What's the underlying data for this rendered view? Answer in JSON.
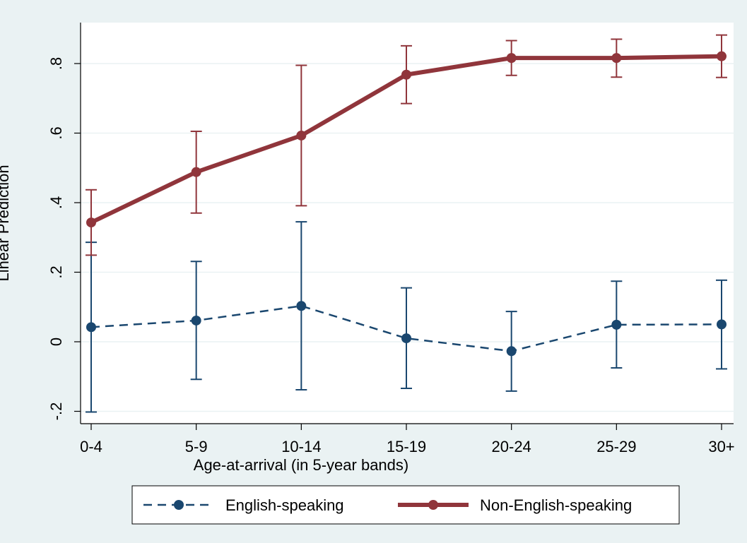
{
  "chart_data": {
    "type": "line",
    "title": "",
    "xlabel": "Age-at-arrival (in 5-year bands)",
    "ylabel": "Linear Prediction",
    "categories": [
      "0-4",
      "5-9",
      "10-14",
      "15-19",
      "20-24",
      "25-29",
      "30+"
    ],
    "y_ticks": [
      -0.2,
      0,
      0.2,
      0.4,
      0.6,
      0.8
    ],
    "y_tick_labels": [
      "-.2",
      "0",
      ".2",
      ".4",
      ".6",
      ".8"
    ],
    "ylim": [
      -0.24,
      0.93
    ],
    "grid": true,
    "legend_position": "bottom",
    "series": [
      {
        "name": "English-speaking",
        "color": "#1a476f",
        "line_style": "dashed",
        "values": [
          0.042,
          0.061,
          0.103,
          0.01,
          -0.027,
          0.049,
          0.05
        ],
        "ci_low": [
          -0.202,
          -0.108,
          -0.138,
          -0.134,
          -0.142,
          -0.075,
          -0.078
        ],
        "ci_high": [
          0.286,
          0.231,
          0.345,
          0.155,
          0.087,
          0.174,
          0.177
        ]
      },
      {
        "name": "Non-English-speaking",
        "color": "#90353b",
        "line_style": "solid",
        "values": [
          0.343,
          0.488,
          0.593,
          0.768,
          0.816,
          0.816,
          0.821
        ],
        "ci_low": [
          0.249,
          0.37,
          0.391,
          0.685,
          0.766,
          0.761,
          0.76
        ],
        "ci_high": [
          0.437,
          0.605,
          0.795,
          0.851,
          0.866,
          0.87,
          0.882
        ]
      }
    ]
  }
}
